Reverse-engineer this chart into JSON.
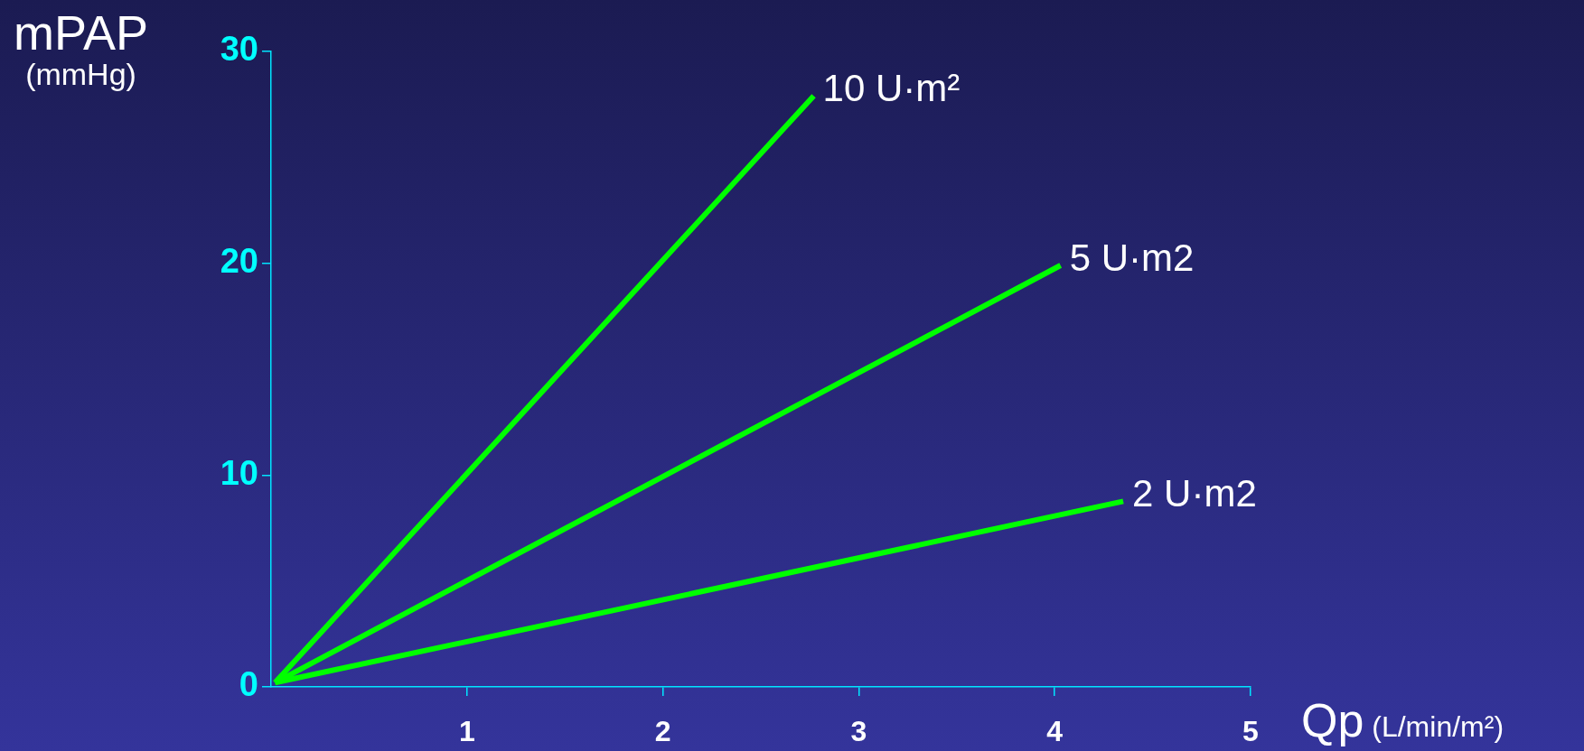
{
  "chart_data": {
    "type": "line",
    "ylabel": "mPAP\n(mmHg)",
    "xlabel": "Qp (L/min/m²)",
    "xlim": [
      0,
      5
    ],
    "xticks": [
      1,
      2,
      3,
      4,
      5
    ],
    "ylim": [
      0,
      30
    ],
    "yticks": [
      0,
      10,
      20,
      30
    ],
    "grid": false,
    "marker": "none",
    "line_style": "solid",
    "series": [
      {
        "name": "10 U·m²",
        "color": "#00ff00",
        "x": [
          0.02,
          2.77
        ],
        "values": [
          0.2,
          27.9
        ]
      },
      {
        "name": "5 U·m2",
        "color": "#00ff00",
        "x": [
          0.02,
          4.03
        ],
        "values": [
          0.2,
          19.9
        ]
      },
      {
        "name": "2 U·m2",
        "color": "#00ff00",
        "x": [
          0.02,
          4.35
        ],
        "values": [
          0.2,
          8.76
        ]
      }
    ]
  }
}
